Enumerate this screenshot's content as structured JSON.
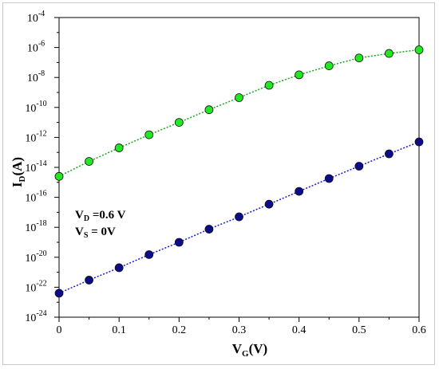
{
  "chart_data": {
    "type": "scatter",
    "title": "",
    "xlabel": {
      "main": "V",
      "sub": "G",
      "unit": "(V)"
    },
    "ylabel": {
      "main": "I",
      "sub": "D",
      "unit": "(A)"
    },
    "xlim": [
      0,
      0.6
    ],
    "ylim": [
      1e-24,
      0.0001
    ],
    "yscale": "log",
    "grid": false,
    "xticks": [
      "0",
      "0.1",
      "0.2",
      "0.3",
      "0.4",
      "0.5",
      "0.6"
    ],
    "xtick_values": [
      0,
      0.1,
      0.2,
      0.3,
      0.4,
      0.5,
      0.6
    ],
    "yticks": [
      {
        "base": "10",
        "exp": "-4",
        "value": 0.0001
      },
      {
        "base": "10",
        "exp": "-6",
        "value": 1e-06
      },
      {
        "base": "10",
        "exp": "-8",
        "value": 1e-08
      },
      {
        "base": "10",
        "exp": "-10",
        "value": 1e-10
      },
      {
        "base": "10",
        "exp": "-12",
        "value": 1e-12
      },
      {
        "base": "10",
        "exp": "-14",
        "value": 1e-14
      },
      {
        "base": "10",
        "exp": "-16",
        "value": 1e-16
      },
      {
        "base": "10",
        "exp": "-18",
        "value": 1e-18
      },
      {
        "base": "10",
        "exp": "-20",
        "value": 1e-20
      },
      {
        "base": "10",
        "exp": "-22",
        "value": 1e-22
      },
      {
        "base": "10",
        "exp": "-24",
        "value": 1e-24
      }
    ],
    "series": [
      {
        "color": "#22e822",
        "line_color": "#1aa81a",
        "x": [
          0,
          0.05,
          0.1,
          0.15,
          0.2,
          0.25,
          0.3,
          0.35,
          0.4,
          0.45,
          0.5,
          0.55,
          0.6
        ],
        "y": [
          2.5e-15,
          2.5e-14,
          2e-13,
          1.5e-12,
          1e-11,
          7e-11,
          4.5e-10,
          3e-09,
          1.5e-08,
          6e-08,
          2e-07,
          4e-07,
          7e-07
        ]
      },
      {
        "color": "#0b0b8c",
        "line_color": "#1a1ad0",
        "x": [
          0,
          0.05,
          0.1,
          0.15,
          0.2,
          0.25,
          0.3,
          0.35,
          0.4,
          0.45,
          0.5,
          0.55,
          0.6
        ],
        "y": [
          4e-23,
          3e-22,
          2e-21,
          1.5e-20,
          1e-19,
          7.5e-19,
          5e-18,
          3.5e-17,
          2.5e-16,
          1.8e-15,
          1.2e-14,
          8e-14,
          5e-13
        ]
      }
    ],
    "annotations": [
      {
        "main": "V",
        "sub": "D",
        "rest": " =0.6 V",
        "color": "#dd1111"
      },
      {
        "main": "V",
        "sub": "S",
        "rest": " = 0V",
        "color": "#dd1111"
      }
    ]
  }
}
